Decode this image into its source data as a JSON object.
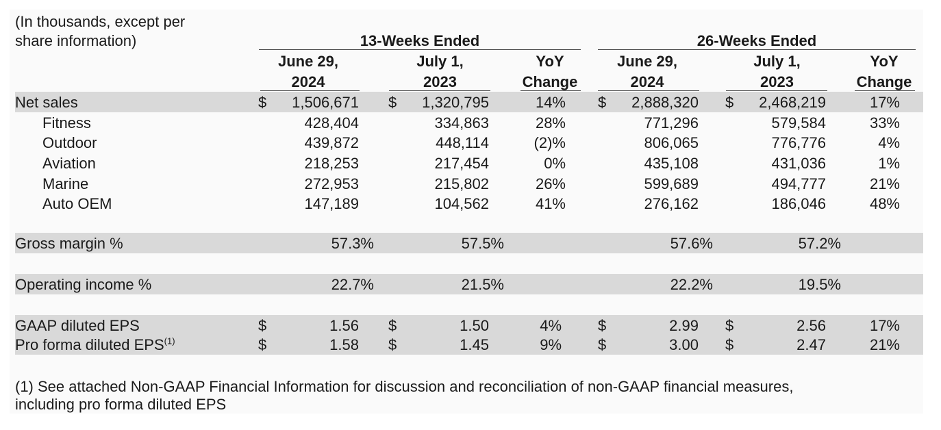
{
  "header": {
    "note_line1": "(In thousands, except per",
    "note_line2": "share information)",
    "group_13": "13-Weeks Ended",
    "group_26": "26-Weeks Ended",
    "cols": [
      {
        "l1": "June 29,",
        "l2": "2024"
      },
      {
        "l1": "July 1,",
        "l2": "2023"
      },
      {
        "l1": "YoY",
        "l2": "Change"
      },
      {
        "l1": "June 29,",
        "l2": "2024"
      },
      {
        "l1": "July 1,",
        "l2": "2023"
      },
      {
        "l1": "YoY",
        "l2": "Change"
      }
    ]
  },
  "currency": "$",
  "net_sales": {
    "label": "Net sales",
    "v": [
      "1,506,671",
      "1,320,795",
      "14%",
      "2,888,320",
      "2,468,219",
      "17%"
    ]
  },
  "segments": [
    {
      "label": "Fitness",
      "v": [
        "428,404",
        "334,863",
        "28%",
        "771,296",
        "579,584",
        "33%"
      ]
    },
    {
      "label": "Outdoor",
      "v": [
        "439,872",
        "448,114",
        "(2)%",
        "806,065",
        "776,776",
        "4%"
      ]
    },
    {
      "label": "Aviation",
      "v": [
        "218,253",
        "217,454",
        "0%",
        "435,108",
        "431,036",
        "1%"
      ]
    },
    {
      "label": "Marine",
      "v": [
        "272,953",
        "215,802",
        "26%",
        "599,689",
        "494,777",
        "21%"
      ]
    },
    {
      "label": "Auto OEM",
      "v": [
        "147,189",
        "104,562",
        "41%",
        "276,162",
        "186,046",
        "48%"
      ]
    }
  ],
  "gross_margin": {
    "label": "Gross margin %",
    "v": [
      "57.3%",
      "57.5%",
      "57.6%",
      "57.2%"
    ]
  },
  "operating_income": {
    "label": "Operating income %",
    "v": [
      "22.7%",
      "21.5%",
      "22.2%",
      "19.5%"
    ]
  },
  "eps": [
    {
      "label": "GAAP diluted EPS",
      "sup": "",
      "v": [
        "1.56",
        "1.50",
        "4%",
        "2.99",
        "2.56",
        "17%"
      ]
    },
    {
      "label": "Pro forma diluted EPS",
      "sup": "(1)",
      "v": [
        "1.58",
        "1.45",
        "9%",
        "3.00",
        "2.47",
        "21%"
      ]
    }
  ],
  "footnote": {
    "line1": "(1) See attached Non-GAAP Financial Information for discussion and reconciliation of non-GAAP financial measures,",
    "line2": "including pro forma diluted EPS"
  }
}
